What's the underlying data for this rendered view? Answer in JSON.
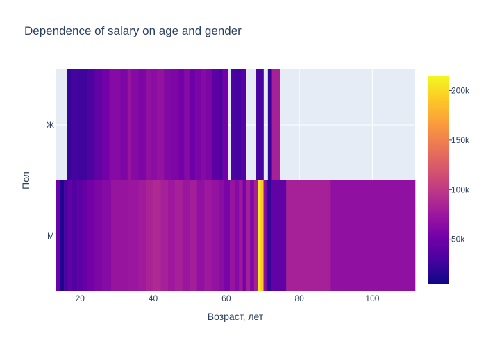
{
  "chart_data": {
    "type": "heatmap",
    "title": "Dependence of salary on age and gender",
    "xlabel": "Возраст, лет",
    "ylabel": "Пол",
    "xlim": [
      13.3,
      111.7
    ],
    "x_ticks": [
      20,
      40,
      60,
      80,
      100
    ],
    "y_categories": [
      "М",
      "Ж"
    ],
    "grid": true,
    "colorscale": [
      "#0d0887",
      "#46039f",
      "#7201a8",
      "#9c179e",
      "#bd3786",
      "#d8576b",
      "#ed7953",
      "#fb9f3a",
      "#fdca26",
      "#f0f921"
    ],
    "zlim": [
      5000,
      215000
    ],
    "colorbar_ticks": [
      {
        "value": 50000,
        "label": "50k"
      },
      {
        "value": 100000,
        "label": "100k"
      },
      {
        "value": 150000,
        "label": "150k"
      },
      {
        "value": 200000,
        "label": "200k"
      }
    ],
    "rows": [
      {
        "category": "Ж",
        "cells": [
          {
            "x0": 16.4,
            "x1": 17.6,
            "z": 22000
          },
          {
            "x0": 17.6,
            "x1": 19.6,
            "z": 28000
          },
          {
            "x0": 19.6,
            "x1": 22.0,
            "z": 25000
          },
          {
            "x0": 22.0,
            "x1": 24.0,
            "z": 32000
          },
          {
            "x0": 24.0,
            "x1": 26.0,
            "z": 42000
          },
          {
            "x0": 26.0,
            "x1": 28.0,
            "z": 52000
          },
          {
            "x0": 28.0,
            "x1": 31.0,
            "z": 62000
          },
          {
            "x0": 31.0,
            "x1": 33.0,
            "z": 58000
          },
          {
            "x0": 33.0,
            "x1": 34.0,
            "z": 72000
          },
          {
            "x0": 34.0,
            "x1": 36.0,
            "z": 62000
          },
          {
            "x0": 36.0,
            "x1": 38.0,
            "z": 58000
          },
          {
            "x0": 38.0,
            "x1": 39.5,
            "z": 68000
          },
          {
            "x0": 39.5,
            "x1": 41.0,
            "z": 65000
          },
          {
            "x0": 41.0,
            "x1": 43.0,
            "z": 70000
          },
          {
            "x0": 43.0,
            "x1": 45.0,
            "z": 60000
          },
          {
            "x0": 45.0,
            "x1": 47.0,
            "z": 58000
          },
          {
            "x0": 47.0,
            "x1": 48.5,
            "z": 52000
          },
          {
            "x0": 48.5,
            "x1": 50.0,
            "z": 62000
          },
          {
            "x0": 50.0,
            "x1": 51.5,
            "z": 48000
          },
          {
            "x0": 51.5,
            "x1": 53.0,
            "z": 56000
          },
          {
            "x0": 53.0,
            "x1": 54.5,
            "z": 62000
          },
          {
            "x0": 54.5,
            "x1": 56.0,
            "z": 58000
          },
          {
            "x0": 56.0,
            "x1": 58.0,
            "z": 40000
          },
          {
            "x0": 58.0,
            "x1": 59.0,
            "z": 32000
          },
          {
            "x0": 59.0,
            "x1": 60.5,
            "z": 52000
          },
          {
            "x0": 61.3,
            "x1": 62.3,
            "z": 32000
          },
          {
            "x0": 62.3,
            "x1": 64.0,
            "z": 28000
          },
          {
            "x0": 64.0,
            "x1": 65.4,
            "z": 36000
          },
          {
            "x0": 68.2,
            "x1": 70.2,
            "z": 30000
          },
          {
            "x0": 71.4,
            "x1": 72.5,
            "z": 22000
          },
          {
            "x0": 72.5,
            "x1": 74.6,
            "z": 82000
          }
        ]
      },
      {
        "category": "М",
        "cells": [
          {
            "x0": 13.3,
            "x1": 14.5,
            "z": 48000
          },
          {
            "x0": 14.5,
            "x1": 15.6,
            "z": 12000
          },
          {
            "x0": 15.6,
            "x1": 16.6,
            "z": 30000
          },
          {
            "x0": 16.6,
            "x1": 17.8,
            "z": 42000
          },
          {
            "x0": 17.8,
            "x1": 19.2,
            "z": 35000
          },
          {
            "x0": 19.2,
            "x1": 20.8,
            "z": 40000
          },
          {
            "x0": 20.8,
            "x1": 22.0,
            "z": 46000
          },
          {
            "x0": 22.0,
            "x1": 24.0,
            "z": 52000
          },
          {
            "x0": 24.0,
            "x1": 26.0,
            "z": 58000
          },
          {
            "x0": 26.0,
            "x1": 28.5,
            "z": 62000
          },
          {
            "x0": 28.5,
            "x1": 33.0,
            "z": 72000
          },
          {
            "x0": 33.0,
            "x1": 36.0,
            "z": 74000
          },
          {
            "x0": 36.0,
            "x1": 38.0,
            "z": 78000
          },
          {
            "x0": 38.0,
            "x1": 40.0,
            "z": 84000
          },
          {
            "x0": 40.0,
            "x1": 42.0,
            "z": 88000
          },
          {
            "x0": 42.0,
            "x1": 44.0,
            "z": 82000
          },
          {
            "x0": 44.0,
            "x1": 46.0,
            "z": 76000
          },
          {
            "x0": 46.0,
            "x1": 48.0,
            "z": 82000
          },
          {
            "x0": 48.0,
            "x1": 50.0,
            "z": 74000
          },
          {
            "x0": 50.0,
            "x1": 52.0,
            "z": 80000
          },
          {
            "x0": 52.0,
            "x1": 54.0,
            "z": 68000
          },
          {
            "x0": 54.0,
            "x1": 56.0,
            "z": 76000
          },
          {
            "x0": 56.0,
            "x1": 58.0,
            "z": 70000
          },
          {
            "x0": 58.0,
            "x1": 59.5,
            "z": 64000
          },
          {
            "x0": 59.5,
            "x1": 61.0,
            "z": 56000
          },
          {
            "x0": 61.0,
            "x1": 62.3,
            "z": 72000
          },
          {
            "x0": 62.3,
            "x1": 63.5,
            "z": 62000
          },
          {
            "x0": 63.5,
            "x1": 64.5,
            "z": 76000
          },
          {
            "x0": 64.5,
            "x1": 65.5,
            "z": 54000
          },
          {
            "x0": 65.5,
            "x1": 66.5,
            "z": 80000
          },
          {
            "x0": 66.5,
            "x1": 67.6,
            "z": 60000
          },
          {
            "x0": 67.6,
            "x1": 68.6,
            "z": 82000
          },
          {
            "x0": 68.6,
            "x1": 69.4,
            "z": 210000
          },
          {
            "x0": 69.4,
            "x1": 70.2,
            "z": 190000
          },
          {
            "x0": 70.2,
            "x1": 71.0,
            "z": 64000
          },
          {
            "x0": 71.0,
            "x1": 72.2,
            "z": 22000
          },
          {
            "x0": 72.2,
            "x1": 76.4,
            "z": 42000
          },
          {
            "x0": 76.4,
            "x1": 88.6,
            "z": 82000
          },
          {
            "x0": 88.6,
            "x1": 111.7,
            "z": 68000
          }
        ]
      }
    ]
  }
}
